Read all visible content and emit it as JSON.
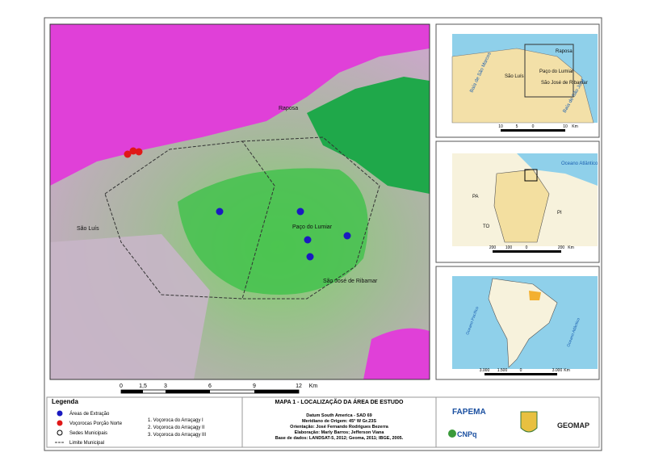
{
  "main_map": {
    "places": [
      "São Luís",
      "Paço do Lumiar",
      "Raposa",
      "São José de Ribamar"
    ],
    "scale": {
      "ticks": [
        "0",
        "1,5",
        "3",
        "6",
        "9",
        "12"
      ],
      "unit": "Km"
    }
  },
  "insets": {
    "regional": {
      "places": [
        "Raposa",
        "Paço do Lumiar",
        "São Luís",
        "São José de Ribamar",
        "Baía de São Marcos",
        "Baía de São José"
      ],
      "scale": {
        "ticks": [
          "10",
          "5",
          "0",
          "10"
        ],
        "unit": "Km"
      }
    },
    "state": {
      "places": [
        "Oceano Atlântico",
        "PA",
        "TO",
        "PI"
      ],
      "scale": {
        "ticks": [
          "200",
          "100",
          "0",
          "200"
        ],
        "unit": "Km"
      }
    },
    "continent": {
      "places": [
        "Oceano Pacífico",
        "Oceano Atlântico"
      ],
      "scale": {
        "ticks": [
          "3.000",
          "1.500",
          "0",
          "3.000"
        ],
        "unit": "Km"
      }
    }
  },
  "legend": {
    "title": "Legenda",
    "items": [
      "Áreas de Extração",
      "Voçorocas Porção Norte",
      "Sedes Municipais",
      "Limite Municipal"
    ],
    "notes": [
      "1. Voçoroca do Arraçagy I",
      "2. Voçoroca do Arraçagy II",
      "3. Voçoroca do Arraçagy III"
    ]
  },
  "title_block": {
    "title": "MAPA 1 - LOCALIZAÇÃO DA ÁREA DE ESTUDO",
    "lines": [
      "Datum South America - SAD 69",
      "Meridiano de Origem: 45° W Gr.23S",
      "Orientação: José Fernando Rodrigues Bezerra",
      "Elaboração: Marly Barros; Jefferson Viana",
      "Base de dados: LANDSAT-5, 2012; Geoma, 2011; IBGE, 2005."
    ]
  },
  "logos": [
    "FAPEMA",
    "CNPq",
    "GEOMAP"
  ]
}
